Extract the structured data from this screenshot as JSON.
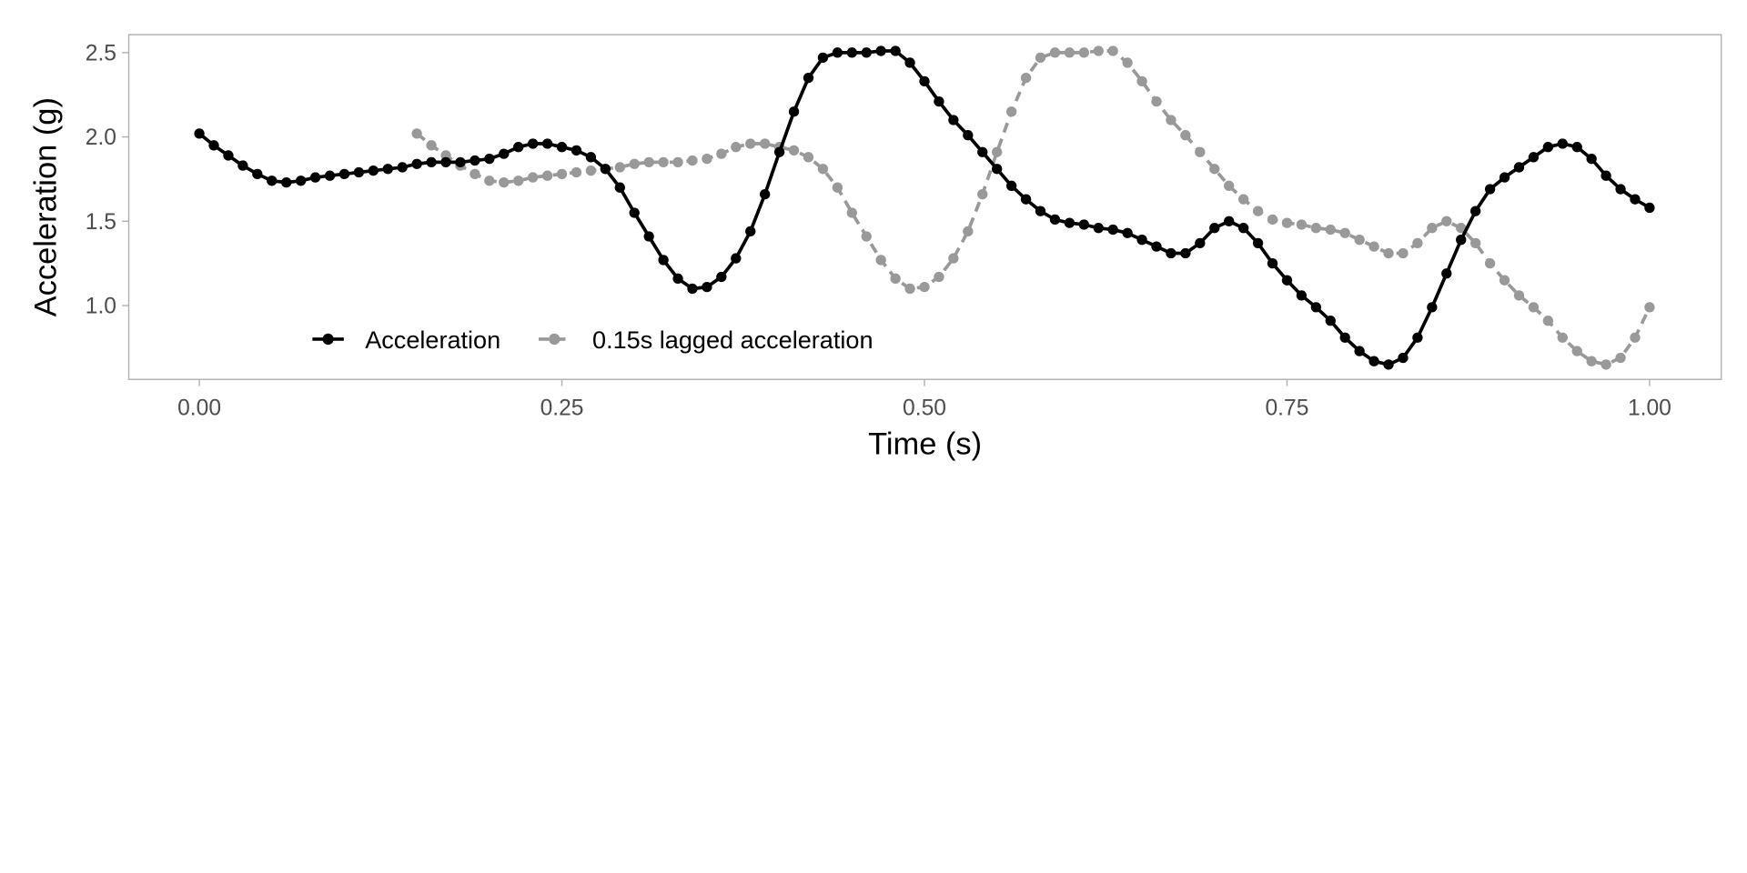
{
  "chart_data": {
    "type": "line",
    "title": "",
    "xlabel": "Time (s)",
    "ylabel": "Acceleration (g)",
    "xlim": [
      -0.049,
      1.049
    ],
    "ylim": [
      0.56,
      2.61
    ],
    "xticks": [
      0,
      0.25,
      0.5,
      0.75,
      1.0
    ],
    "xtick_labels": [
      "0.00",
      "0.25",
      "0.50",
      "0.75",
      "1.00"
    ],
    "yticks": [
      1.0,
      1.5,
      2.0,
      2.5
    ],
    "ytick_labels": [
      "1.0",
      "1.5",
      "2.0",
      "2.5"
    ],
    "grid": false,
    "legend_position": "bottom-left inside",
    "series": [
      {
        "name": "Acceleration",
        "color": "#000000",
        "dash": "solid",
        "x_start": 0,
        "x_step": 0.01,
        "values": [
          2.02,
          1.95,
          1.89,
          1.83,
          1.78,
          1.74,
          1.73,
          1.74,
          1.76,
          1.77,
          1.78,
          1.79,
          1.8,
          1.81,
          1.82,
          1.84,
          1.85,
          1.85,
          1.85,
          1.86,
          1.87,
          1.9,
          1.94,
          1.96,
          1.96,
          1.94,
          1.92,
          1.88,
          1.81,
          1.7,
          1.55,
          1.41,
          1.27,
          1.16,
          1.1,
          1.11,
          1.17,
          1.28,
          1.44,
          1.66,
          1.91,
          2.15,
          2.35,
          2.47,
          2.5,
          2.5,
          2.5,
          2.51,
          2.51,
          2.44,
          2.33,
          2.21,
          2.1,
          2.01,
          1.91,
          1.81,
          1.71,
          1.63,
          1.56,
          1.51,
          1.49,
          1.48,
          1.46,
          1.45,
          1.43,
          1.39,
          1.35,
          1.31,
          1.31,
          1.37,
          1.46,
          1.5,
          1.46,
          1.37,
          1.25,
          1.15,
          1.06,
          0.99,
          0.91,
          0.81,
          0.73,
          0.67,
          0.65,
          0.69,
          0.81,
          0.99,
          1.19,
          1.39,
          1.56,
          1.69,
          1.76,
          1.82,
          1.88,
          1.94,
          1.96,
          1.94,
          1.87,
          1.77,
          1.69,
          1.63,
          1.58
        ]
      },
      {
        "name": "0.15s lagged acceleration",
        "color": "#999999",
        "dash": "dashed",
        "x_start": 0.15,
        "x_step": 0.01,
        "values": [
          2.02,
          1.95,
          1.89,
          1.83,
          1.78,
          1.74,
          1.73,
          1.74,
          1.76,
          1.77,
          1.78,
          1.79,
          1.8,
          1.81,
          1.82,
          1.84,
          1.85,
          1.85,
          1.85,
          1.86,
          1.87,
          1.9,
          1.94,
          1.96,
          1.96,
          1.94,
          1.92,
          1.88,
          1.81,
          1.7,
          1.55,
          1.41,
          1.27,
          1.16,
          1.1,
          1.11,
          1.17,
          1.28,
          1.44,
          1.66,
          1.91,
          2.15,
          2.35,
          2.47,
          2.5,
          2.5,
          2.5,
          2.51,
          2.51,
          2.44,
          2.33,
          2.21,
          2.1,
          2.01,
          1.91,
          1.81,
          1.71,
          1.63,
          1.56,
          1.51,
          1.49,
          1.48,
          1.46,
          1.45,
          1.43,
          1.39,
          1.35,
          1.31,
          1.31,
          1.37,
          1.46,
          1.5,
          1.46,
          1.37,
          1.25,
          1.15,
          1.06,
          0.99,
          0.91,
          0.81,
          0.73,
          0.67,
          0.65,
          0.69,
          0.81,
          0.99
        ]
      }
    ]
  }
}
